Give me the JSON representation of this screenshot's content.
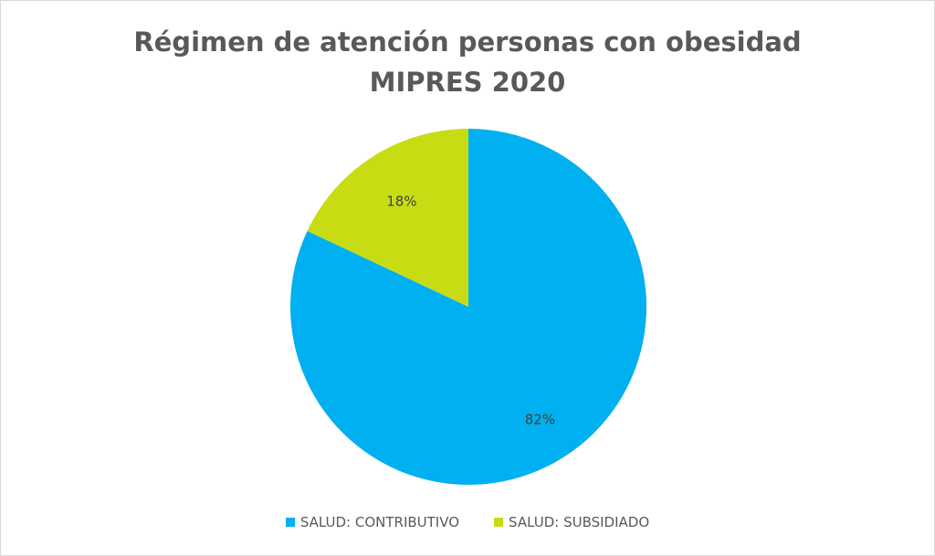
{
  "chart_data": {
    "type": "pie",
    "title_lines": [
      "Régimen de atención personas con obesidad",
      "MIPRES 2020"
    ],
    "categories": [
      "SALUD: CONTRIBUTIVO",
      "SALUD: SUBSIDIADO"
    ],
    "values": [
      82,
      18
    ],
    "data_labels": [
      "82%",
      "18%"
    ],
    "colors": [
      "#00B0F0",
      "#C8DC14"
    ],
    "start_angle": "top, clockwise",
    "legend_position": "bottom"
  }
}
